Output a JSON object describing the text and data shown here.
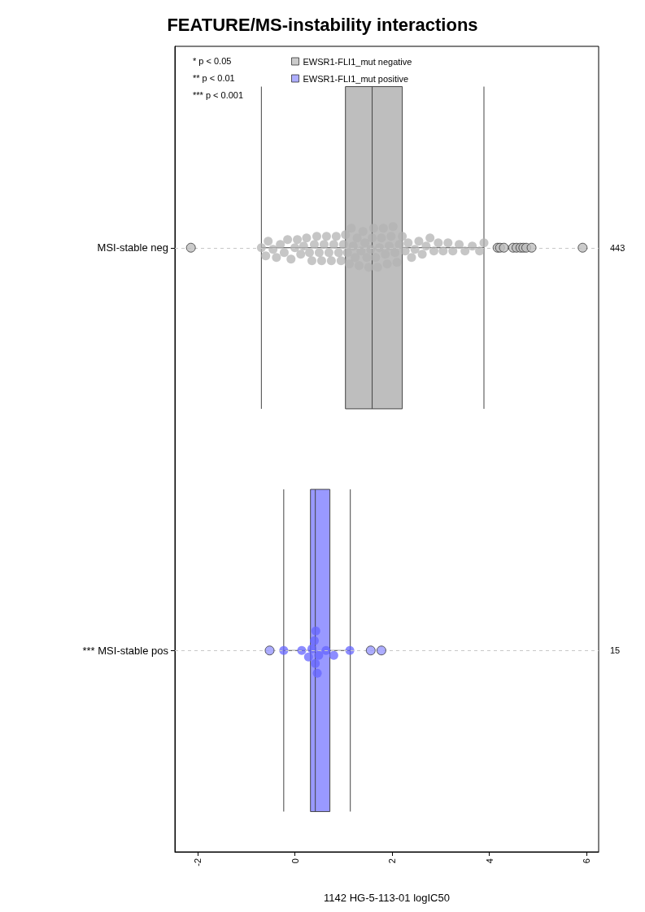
{
  "chart_data": {
    "type": "box",
    "orientation": "horizontal",
    "title": "FEATURE/MS-instability interactions",
    "xlabel": "1142 HG-5-113-01 logIC50",
    "categories": [
      "MSI-stable neg",
      "*** MSI-stable pos"
    ],
    "xlim": [
      -2.47,
      6.25
    ],
    "xticks": [
      -2,
      0,
      2,
      4,
      6
    ],
    "grid": "y",
    "legend": "top left",
    "annotations": [
      "* p < 0.05",
      "** p < 0.01",
      "*** p < 0.001",
      "443",
      "15"
    ],
    "series": [
      {
        "name": "EWSR1-FLI1_mut negative",
        "color": "#bebebe",
        "boxes": [
          {
            "low": -0.69,
            "q1": 1.04,
            "median": 1.59,
            "q3": 2.21,
            "high": 3.89,
            "outliers": [
              -2.14,
              4.17,
              4.22,
              4.3,
              4.49,
              4.56,
              4.64,
              4.7,
              4.76,
              4.87,
              5.92
            ]
          },
          null
        ]
      },
      {
        "name": "EWSR1-FLI1_mut positive",
        "color": "#9999ff",
        "boxes": [
          null,
          {
            "low": -0.23,
            "q1": 0.32,
            "median": 0.42,
            "q3": 0.72,
            "high": 1.14,
            "outliers": [
              -0.52,
              1.56,
              1.78
            ]
          }
        ]
      },
      {
        "type": "scatter",
        "color": "#b3b3b3",
        "x": [
          "MSI-stable neg",
          "MSI-stable neg",
          "MSI-stable neg",
          "MSI-stable neg",
          "MSI-stable neg",
          "MSI-stable neg",
          "MSI-stable neg",
          "MSI-stable neg",
          "MSI-stable neg",
          "MSI-stable neg",
          "MSI-stable neg",
          "MSI-stable neg",
          "MSI-stable neg",
          "MSI-stable neg",
          "MSI-stable neg",
          "MSI-stable neg",
          "MSI-stable neg",
          "MSI-stable neg",
          "MSI-stable neg",
          "MSI-stable neg",
          "MSI-stable neg",
          "MSI-stable neg",
          "MSI-stable neg",
          "MSI-stable neg",
          "MSI-stable neg",
          "MSI-stable neg",
          "MSI-stable neg",
          "MSI-stable neg",
          "MSI-stable neg",
          "MSI-stable neg",
          "MSI-stable neg",
          "MSI-stable neg",
          "MSI-stable neg",
          "MSI-stable neg",
          "MSI-stable neg",
          "MSI-stable neg",
          "MSI-stable neg",
          "MSI-stable neg",
          "MSI-stable neg",
          "MSI-stable neg",
          "MSI-stable neg",
          "MSI-stable neg",
          "MSI-stable neg",
          "MSI-stable neg",
          "MSI-stable neg",
          "MSI-stable neg",
          "MSI-stable neg",
          "MSI-stable neg",
          "MSI-stable neg",
          "MSI-stable neg",
          "MSI-stable neg",
          "MSI-stable neg",
          "MSI-stable neg",
          "MSI-stable neg",
          "MSI-stable neg",
          "MSI-stable neg",
          "MSI-stable neg",
          "MSI-stable neg",
          "MSI-stable neg",
          "MSI-stable neg",
          "MSI-stable neg",
          "MSI-stable neg",
          "MSI-stable neg",
          "MSI-stable neg",
          "MSI-stable neg",
          "MSI-stable neg",
          "MSI-stable neg",
          "MSI-stable neg",
          "MSI-stable neg",
          "MSI-stable neg",
          "MSI-stable neg",
          "MSI-stable neg",
          "MSI-stable neg",
          "MSI-stable neg",
          "MSI-stable neg",
          "MSI-stable neg",
          "MSI-stable neg"
        ],
        "values": [
          -0.69,
          -0.6,
          -0.55,
          -0.45,
          -0.38,
          -0.3,
          -0.22,
          -0.15,
          -0.08,
          0.0,
          0.05,
          0.12,
          0.18,
          0.24,
          0.3,
          0.35,
          0.4,
          0.45,
          0.5,
          0.55,
          0.6,
          0.65,
          0.7,
          0.75,
          0.8,
          0.85,
          0.9,
          0.95,
          1.0,
          1.04,
          1.08,
          1.12,
          1.16,
          1.2,
          1.24,
          1.28,
          1.32,
          1.36,
          1.4,
          1.44,
          1.48,
          1.52,
          1.56,
          1.59,
          1.62,
          1.66,
          1.7,
          1.74,
          1.78,
          1.82,
          1.86,
          1.9,
          1.94,
          1.98,
          2.02,
          2.06,
          2.1,
          2.15,
          2.21,
          2.27,
          2.33,
          2.4,
          2.47,
          2.55,
          2.62,
          2.7,
          2.78,
          2.86,
          2.95,
          3.05,
          3.15,
          3.25,
          3.38,
          3.5,
          3.65,
          3.8,
          3.89
        ]
      },
      {
        "type": "scatter",
        "color": "#6666ff",
        "x": [
          "*** MSI-stable pos",
          "*** MSI-stable pos",
          "*** MSI-stable pos",
          "*** MSI-stable pos",
          "*** MSI-stable pos",
          "*** MSI-stable pos",
          "*** MSI-stable pos",
          "*** MSI-stable pos",
          "*** MSI-stable pos",
          "*** MSI-stable pos",
          "*** MSI-stable pos",
          "*** MSI-stable pos"
        ],
        "values": [
          -0.23,
          0.14,
          0.28,
          0.35,
          0.4,
          0.42,
          0.43,
          0.46,
          0.49,
          0.64,
          0.8,
          1.13
        ]
      }
    ]
  }
}
